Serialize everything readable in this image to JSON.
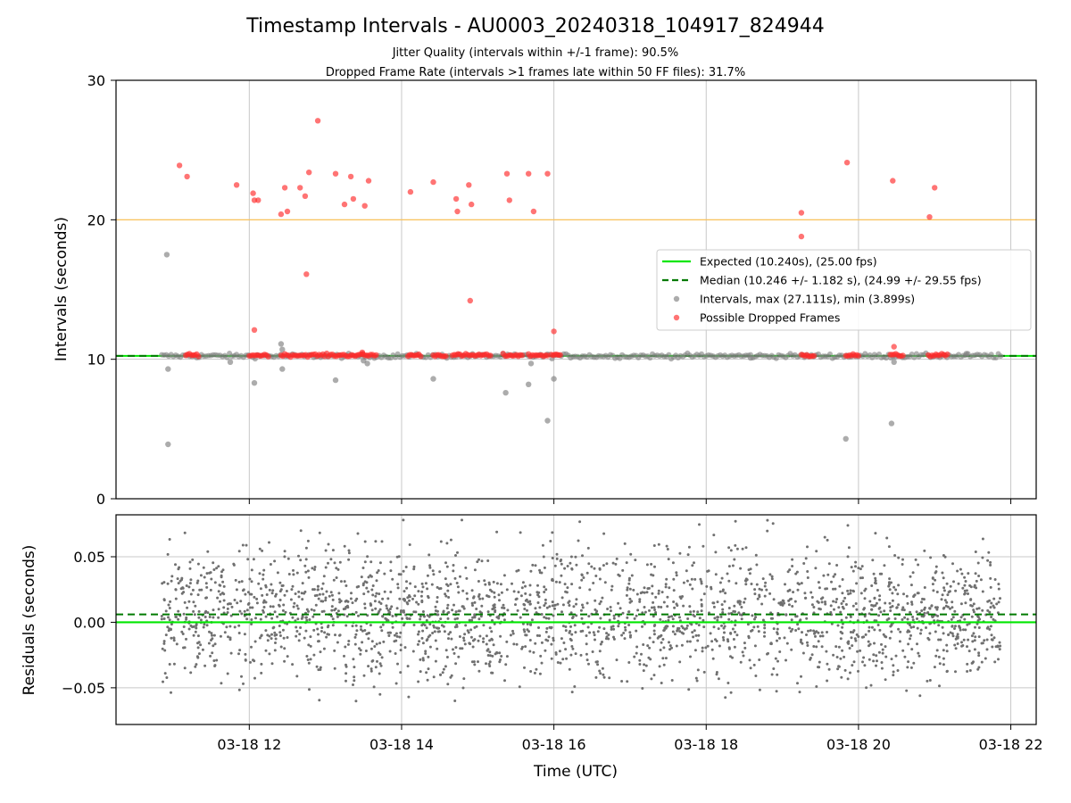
{
  "title": "Timestamp Intervals - AU0003_20240318_104917_824944",
  "subtitle_lines": [
    "Jitter Quality (intervals within +/-1 frame): 90.5%",
    "Dropped Frame Rate (intervals >1 frames late within 50 FF files): 31.7%"
  ],
  "colors": {
    "expected": "#00e600",
    "median": "#007a00",
    "intervals": "#808080",
    "dropped": "#ff2a2a",
    "threshold": "#ffc04d",
    "residuals": "#707070",
    "grid": "#c8c8c8"
  },
  "legend": {
    "placement": "center-right",
    "entries": [
      {
        "label": "Expected (10.240s), (25.00 fps)",
        "kind": "solid-line",
        "color_key": "expected"
      },
      {
        "label": "Median (10.246 +/- 1.182 s), (24.99 +/- 29.55 fps)",
        "kind": "dashed-line",
        "color_key": "median"
      },
      {
        "label": "Intervals, max (27.111s), min (3.899s)",
        "kind": "dot",
        "color_key": "intervals"
      },
      {
        "label": "Possible Dropped Frames",
        "kind": "dot",
        "color_key": "dropped"
      }
    ]
  },
  "chart_data": [
    {
      "type": "scatter",
      "name": "intervals",
      "xlabel": "",
      "ylabel": "Intervals (seconds)",
      "xlim": [
        "2024-03-18T10:15",
        "2024-03-18T22:20"
      ],
      "ylim": [
        0,
        30
      ],
      "yticks": [
        0,
        10,
        20,
        30
      ],
      "ytick_labels": [
        "0",
        "10",
        "20",
        "30"
      ],
      "grid": true,
      "expected_line": 10.24,
      "median_line": 10.246,
      "threshold_line": 20,
      "time_span": [
        "2024-03-18T10:51",
        "2024-03-18T21:52"
      ],
      "typical_interval": 10.24,
      "dropped_clusters": [
        [
          "2024-03-18T11:10",
          "2024-03-18T11:20"
        ],
        [
          "2024-03-18T12:00",
          "2024-03-18T12:15"
        ],
        [
          "2024-03-18T12:25",
          "2024-03-18T13:40"
        ],
        [
          "2024-03-18T14:05",
          "2024-03-18T14:15"
        ],
        [
          "2024-03-18T14:25",
          "2024-03-18T14:35"
        ],
        [
          "2024-03-18T14:40",
          "2024-03-18T15:10"
        ],
        [
          "2024-03-18T15:20",
          "2024-03-18T15:35"
        ],
        [
          "2024-03-18T15:40",
          "2024-03-18T15:55"
        ],
        [
          "2024-03-18T15:58",
          "2024-03-18T16:05"
        ],
        [
          "2024-03-18T19:15",
          "2024-03-18T19:25"
        ],
        [
          "2024-03-18T19:50",
          "2024-03-18T20:00"
        ],
        [
          "2024-03-18T20:25",
          "2024-03-18T20:35"
        ],
        [
          "2024-03-18T20:55",
          "2024-03-18T21:10"
        ]
      ],
      "dropped_outliers": [
        [
          "2024-03-18T11:05",
          23.9
        ],
        [
          "2024-03-18T11:11",
          23.1
        ],
        [
          "2024-03-18T11:50",
          22.5
        ],
        [
          "2024-03-18T12:03",
          21.9
        ],
        [
          "2024-03-18T12:04",
          21.4
        ],
        [
          "2024-03-18T12:07",
          21.4
        ],
        [
          "2024-03-18T12:04",
          12.1
        ],
        [
          "2024-03-18T12:25",
          20.4
        ],
        [
          "2024-03-18T12:28",
          22.3
        ],
        [
          "2024-03-18T12:30",
          20.6
        ],
        [
          "2024-03-18T12:40",
          22.3
        ],
        [
          "2024-03-18T12:44",
          21.7
        ],
        [
          "2024-03-18T12:45",
          16.1
        ],
        [
          "2024-03-18T12:47",
          23.4
        ],
        [
          "2024-03-18T12:54",
          27.1
        ],
        [
          "2024-03-18T13:08",
          23.3
        ],
        [
          "2024-03-18T13:15",
          21.1
        ],
        [
          "2024-03-18T13:20",
          23.1
        ],
        [
          "2024-03-18T13:22",
          21.5
        ],
        [
          "2024-03-18T13:29",
          10.5
        ],
        [
          "2024-03-18T13:31",
          21.0
        ],
        [
          "2024-03-18T13:34",
          22.8
        ],
        [
          "2024-03-18T14:07",
          22.0
        ],
        [
          "2024-03-18T14:25",
          22.7
        ],
        [
          "2024-03-18T14:43",
          21.5
        ],
        [
          "2024-03-18T14:44",
          20.6
        ],
        [
          "2024-03-18T14:53",
          22.5
        ],
        [
          "2024-03-18T14:55",
          21.1
        ],
        [
          "2024-03-18T14:54",
          14.2
        ],
        [
          "2024-03-18T15:23",
          23.3
        ],
        [
          "2024-03-18T15:25",
          21.4
        ],
        [
          "2024-03-18T15:40",
          23.3
        ],
        [
          "2024-03-18T15:44",
          20.6
        ],
        [
          "2024-03-18T15:55",
          23.3
        ],
        [
          "2024-03-18T16:00",
          12.0
        ],
        [
          "2024-03-18T19:15",
          20.5
        ],
        [
          "2024-03-18T19:15",
          18.8
        ],
        [
          "2024-03-18T19:51",
          24.1
        ],
        [
          "2024-03-18T20:27",
          22.8
        ],
        [
          "2024-03-18T20:28",
          10.9
        ],
        [
          "2024-03-18T20:56",
          20.2
        ],
        [
          "2024-03-18T21:00",
          22.3
        ]
      ],
      "interval_outliers": [
        [
          "2024-03-18T10:55",
          17.5
        ],
        [
          "2024-03-18T10:56",
          9.3
        ],
        [
          "2024-03-18T10:56",
          3.9
        ],
        [
          "2024-03-18T11:45",
          9.8
        ],
        [
          "2024-03-18T12:04",
          8.3
        ],
        [
          "2024-03-18T12:25",
          11.1
        ],
        [
          "2024-03-18T12:26",
          10.7
        ],
        [
          "2024-03-18T12:26",
          9.3
        ],
        [
          "2024-03-18T13:08",
          8.5
        ],
        [
          "2024-03-18T13:30",
          9.9
        ],
        [
          "2024-03-18T13:33",
          9.7
        ],
        [
          "2024-03-18T14:25",
          8.6
        ],
        [
          "2024-03-18T15:22",
          7.6
        ],
        [
          "2024-03-18T15:40",
          8.2
        ],
        [
          "2024-03-18T15:42",
          9.7
        ],
        [
          "2024-03-18T15:55",
          5.6
        ],
        [
          "2024-03-18T16:00",
          8.6
        ],
        [
          "2024-03-18T18:35",
          10.1
        ],
        [
          "2024-03-18T19:50",
          4.3
        ],
        [
          "2024-03-18T20:26",
          5.4
        ],
        [
          "2024-03-18T20:28",
          9.8
        ],
        [
          "2024-03-18T21:25",
          10.4
        ]
      ]
    },
    {
      "type": "scatter",
      "name": "residuals",
      "xlabel": "Time (UTC)",
      "ylabel": "Residuals (seconds)",
      "xlim": [
        "2024-03-18T10:15",
        "2024-03-18T22:20"
      ],
      "ylim": [
        -0.078,
        0.082
      ],
      "yticks": [
        -0.05,
        0,
        0.05
      ],
      "ytick_labels": [
        "−0.05",
        "0.00",
        "0.05"
      ],
      "xticks": [
        "2024-03-18T12:00",
        "2024-03-18T14:00",
        "2024-03-18T16:00",
        "2024-03-18T18:00",
        "2024-03-18T20:00",
        "2024-03-18T22:00"
      ],
      "xtick_labels": [
        "03-18 12",
        "03-18 14",
        "03-18 16",
        "03-18 18",
        "03-18 20",
        "03-18 22"
      ],
      "grid": true,
      "expected_line": 0.0,
      "median_line": 0.006,
      "time_span": [
        "2024-03-18T10:51",
        "2024-03-18T21:52"
      ],
      "residual_band_center": 0.006,
      "residual_band_spread": 0.025,
      "residual_min": -0.078,
      "residual_max": 0.078
    }
  ]
}
